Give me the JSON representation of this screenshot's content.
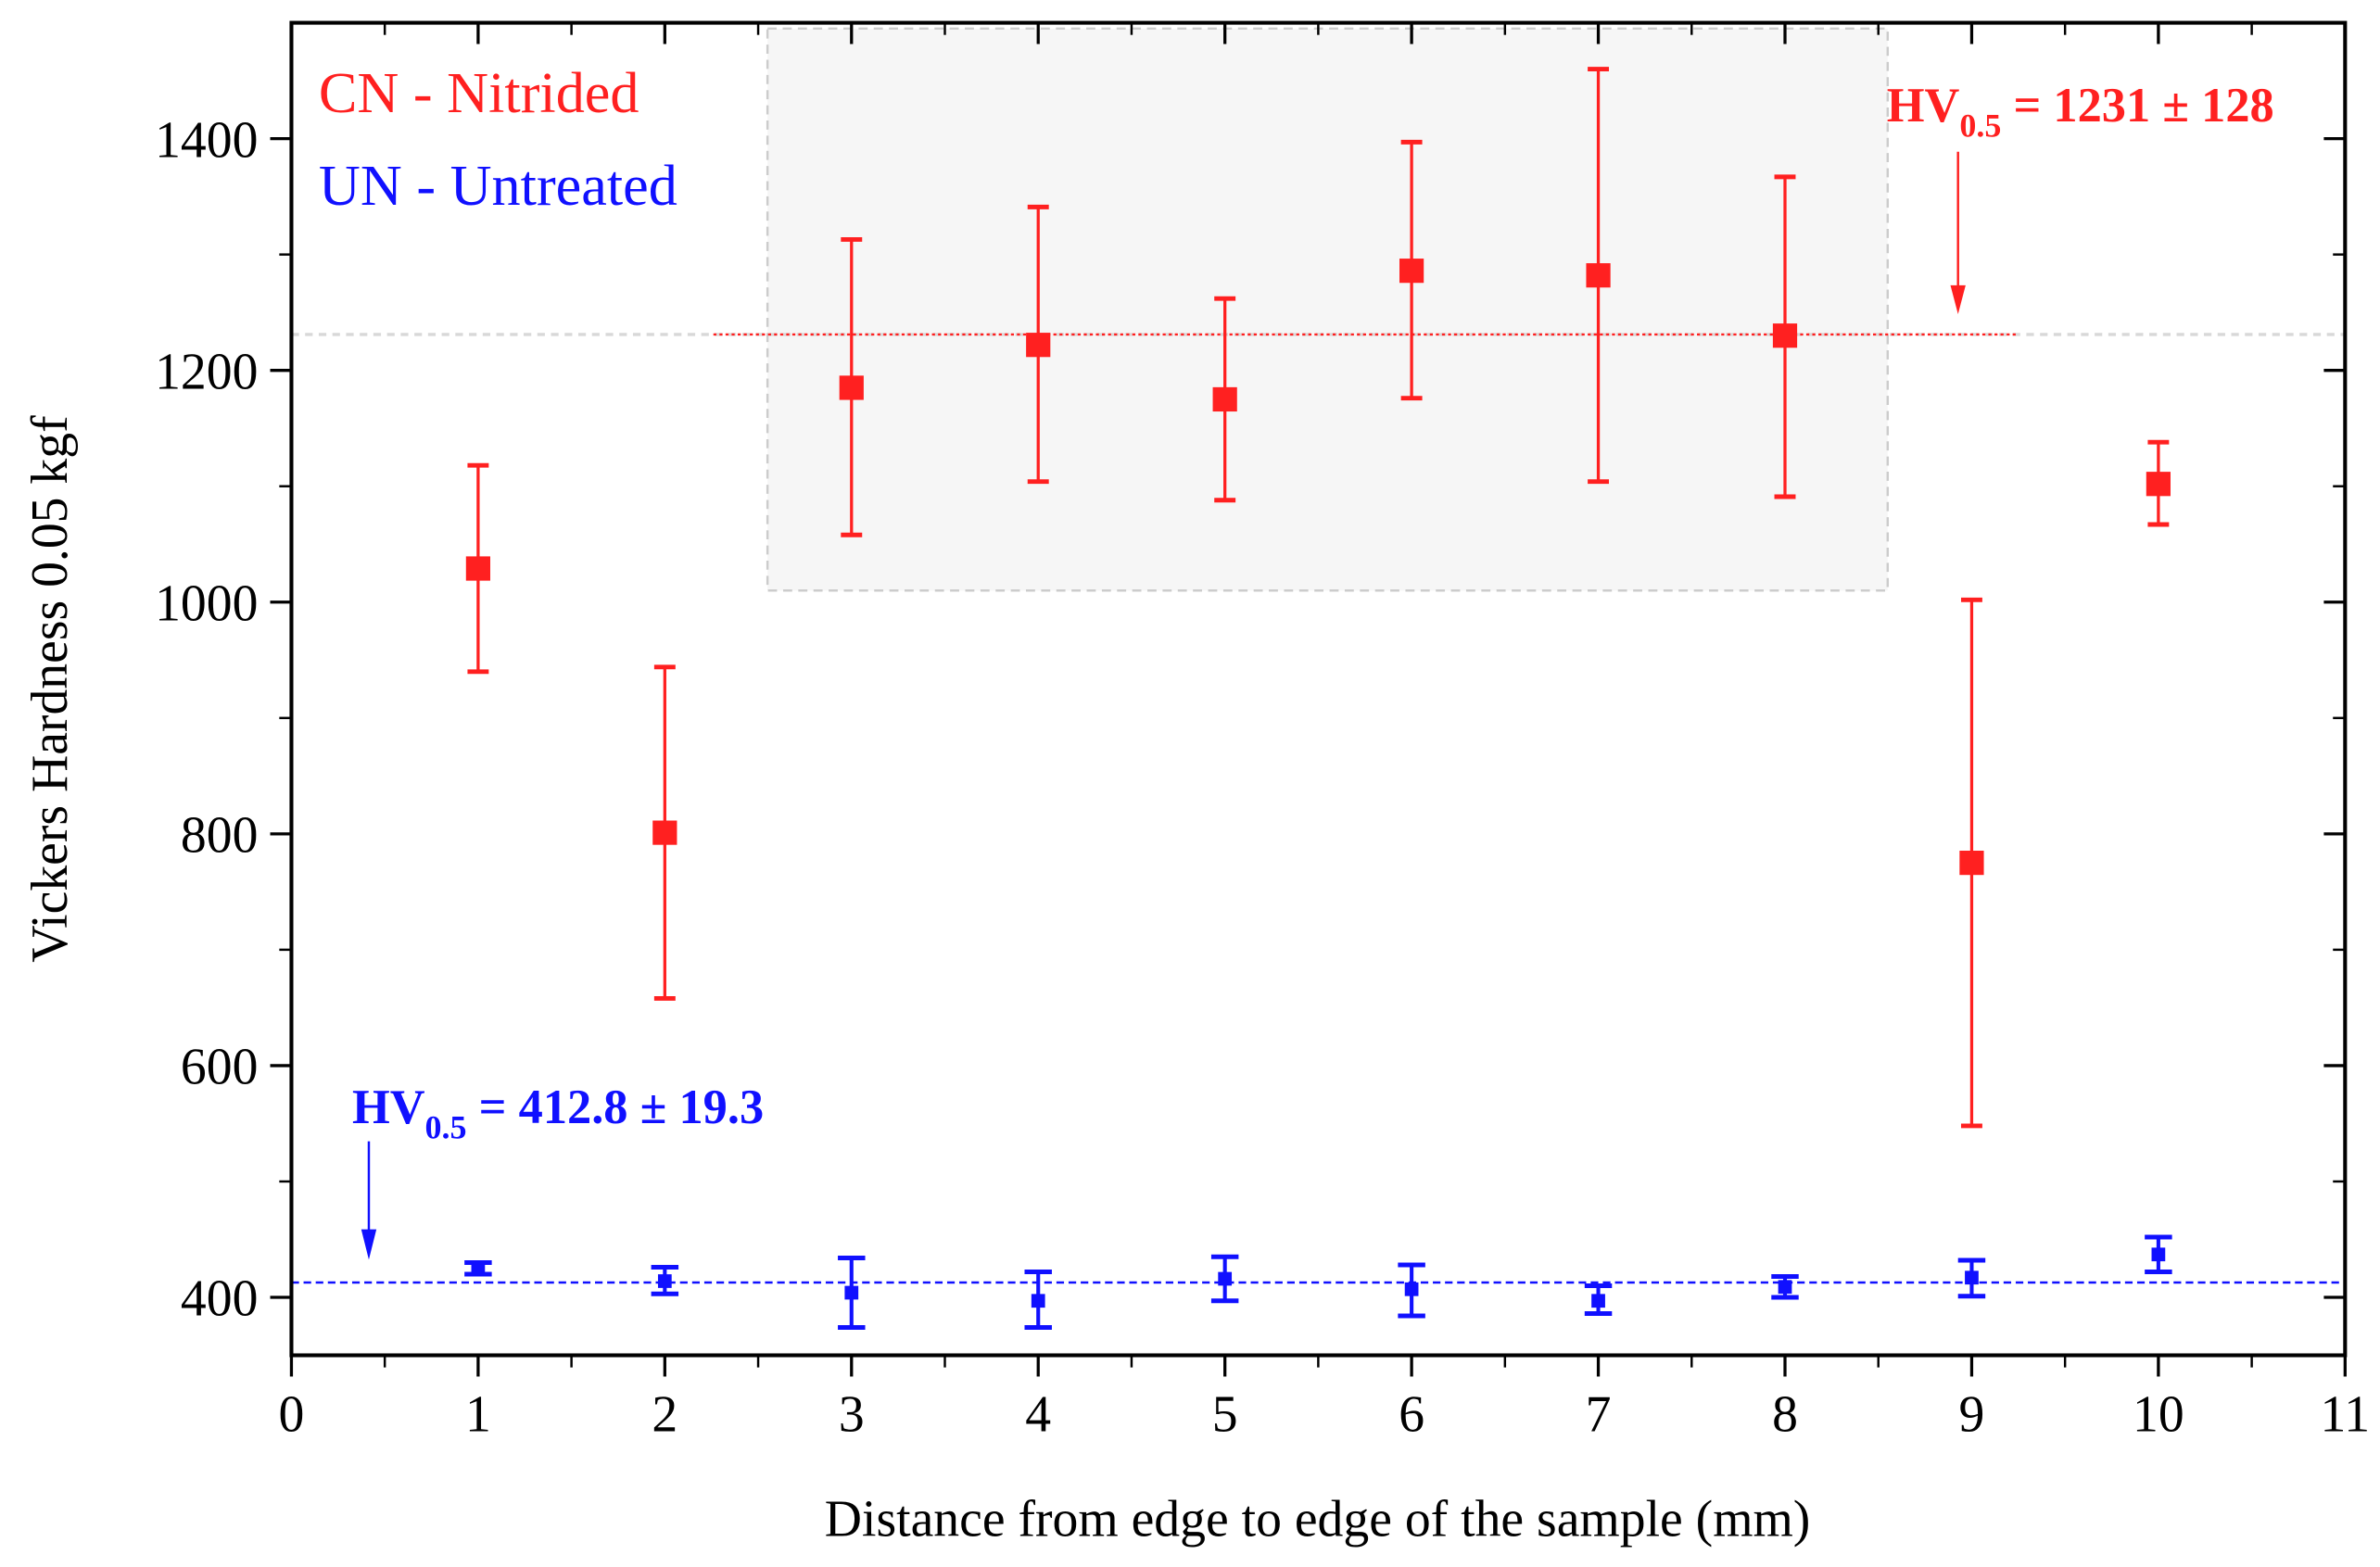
{
  "chart_data": {
    "type": "scatter",
    "xlabel": "Distance from edge to edge of the sample (mm)",
    "ylabel": "Vickers Hardness 0.05 kgf",
    "xlim": [
      0,
      11
    ],
    "ylim": [
      350,
      1500
    ],
    "xticks": [
      0,
      1,
      2,
      3,
      4,
      5,
      6,
      7,
      8,
      9,
      10,
      11
    ],
    "yticks": [
      400,
      600,
      800,
      1000,
      1200,
      1400
    ],
    "grid": false,
    "legend": [
      "CN - Nitrided",
      "UN - Untreated"
    ],
    "legend_placement": "top-left",
    "series": [
      {
        "name": "CN - Nitrided",
        "color": "#ff2020",
        "x": [
          1,
          2,
          3,
          4,
          5,
          6,
          7,
          8,
          9,
          10
        ],
        "y": [
          1029,
          801,
          1185,
          1222,
          1175,
          1286,
          1282,
          1230,
          775,
          1102
        ],
        "err_high": [
          1118,
          944,
          1313,
          1341,
          1262,
          1397,
          1460,
          1367,
          1002,
          1138
        ],
        "err_low": [
          940,
          658,
          1058,
          1104,
          1088,
          1176,
          1104,
          1091,
          548,
          1067
        ]
      },
      {
        "name": "UN - Untreated",
        "color": "#1010ff",
        "x": [
          1,
          2,
          3,
          4,
          5,
          6,
          7,
          8,
          9,
          10
        ],
        "y": [
          425,
          414,
          404,
          397,
          416,
          407,
          397,
          409,
          417,
          437
        ],
        "err_high": [
          430,
          426,
          434,
          422,
          435,
          428,
          410,
          418,
          432,
          452
        ],
        "err_low": [
          420,
          403,
          374,
          374,
          397,
          384,
          386,
          400,
          401,
          422
        ]
      }
    ],
    "reference_lines": [
      {
        "value": 1231,
        "color": "#ff2020"
      },
      {
        "value": 412.8,
        "color": "#1010ff"
      }
    ],
    "highlight_region": {
      "x": [
        2.55,
        8.55
      ],
      "y": [
        1010,
        1495
      ],
      "color": "#f5f5f5"
    },
    "annotations": [
      {
        "main": "HV",
        "sub": "0.5",
        "rest": " = 1231 ± 128",
        "color": "#ff2020"
      },
      {
        "main": "HV",
        "sub": "0.5",
        "rest": " = 412.8 ± 19.3",
        "color": "#1010ff"
      }
    ]
  }
}
